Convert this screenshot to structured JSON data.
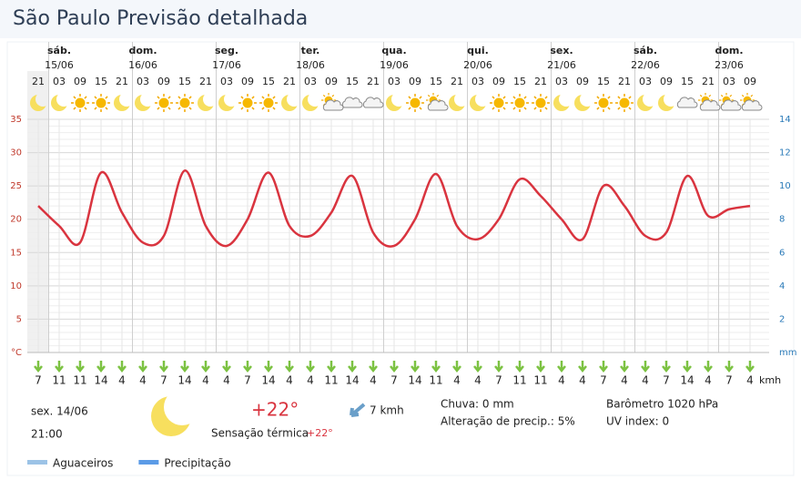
{
  "header": {
    "title": "São Paulo Previsão detalhada"
  },
  "chart_data": {
    "type": "line",
    "days": [
      {
        "name": "sáb.",
        "date": "15/06"
      },
      {
        "name": "dom.",
        "date": "16/06"
      },
      {
        "name": "seg.",
        "date": "17/06"
      },
      {
        "name": "ter.",
        "date": "18/06"
      },
      {
        "name": "qua.",
        "date": "19/06"
      },
      {
        "name": "qui.",
        "date": "20/06"
      },
      {
        "name": "sex.",
        "date": "21/06"
      },
      {
        "name": "sáb.",
        "date": "22/06"
      },
      {
        "name": "dom.",
        "date": "23/06"
      }
    ],
    "categories": [
      "21",
      "03",
      "09",
      "15",
      "21",
      "03",
      "09",
      "15",
      "21",
      "03",
      "09",
      "15",
      "21",
      "03",
      "09",
      "15",
      "21",
      "03",
      "09",
      "15",
      "21",
      "03",
      "09",
      "15",
      "21",
      "03",
      "09",
      "15",
      "21",
      "03",
      "09",
      "15",
      "21",
      "03",
      "09"
    ],
    "series": [
      {
        "color": "#d9343f",
        "values": [
          22,
          19,
          16.5,
          27,
          21,
          16.5,
          17.5,
          27.3,
          19,
          16,
          20,
          27,
          19,
          17.5,
          21,
          26.5,
          18,
          16,
          20,
          26.8,
          19,
          17,
          20,
          26,
          23.5,
          20,
          17,
          25,
          22,
          17.5,
          18,
          26.5,
          20.5,
          21.5,
          22
        ]
      },
      {
        "name": "Aguaceiros",
        "color": "#9cc3e6",
        "axis": "y2",
        "values": [
          0,
          0,
          0,
          0,
          0,
          0,
          0,
          0,
          0,
          0,
          0,
          0,
          0,
          0,
          0,
          0,
          0,
          0,
          0,
          0,
          0,
          0,
          0,
          0,
          0,
          0,
          0,
          0,
          0,
          0,
          0,
          0,
          0,
          0,
          0
        ]
      },
      {
        "name": "Precipitação",
        "color": "#5b9be6",
        "axis": "y2",
        "values": [
          0,
          0,
          0,
          0,
          0,
          0,
          0,
          0,
          0,
          0,
          0,
          0,
          0,
          0,
          0,
          0,
          0,
          0,
          0,
          0,
          0,
          0,
          0,
          0,
          0,
          0,
          0,
          0,
          0,
          0,
          0,
          0,
          0,
          0,
          0
        ]
      }
    ],
    "ylim": [
      0,
      35
    ],
    "yticks": [
      {
        "value": 0,
        "label": "°C"
      },
      5,
      10,
      15,
      20,
      25,
      30,
      35
    ],
    "y2lim": [
      0,
      14
    ],
    "y2ticks": [
      {
        "value": 0,
        "label": "mm"
      },
      2,
      4,
      6,
      8,
      10,
      12,
      14
    ],
    "grid": true,
    "wind": {
      "unit": "kmh",
      "values": [
        7,
        11,
        11,
        14,
        4,
        4,
        7,
        14,
        4,
        4,
        7,
        14,
        4,
        4,
        11,
        14,
        4,
        7,
        14,
        11,
        4,
        4,
        7,
        11,
        11,
        4,
        4,
        7,
        4,
        4,
        7,
        14,
        4,
        7,
        4
      ]
    }
  },
  "current": {
    "day": "sex. 14/06",
    "time": "21:00",
    "temp": "+22°",
    "feels_label": "Sensação térmica",
    "feels": "+22°",
    "wind": "7 kmh",
    "rain": "Chuva: 0 mm",
    "precip_change": "Alteração de precip.: 5%",
    "pressure": "Barômetro 1020 hPa",
    "uv": "UV index: 0"
  }
}
